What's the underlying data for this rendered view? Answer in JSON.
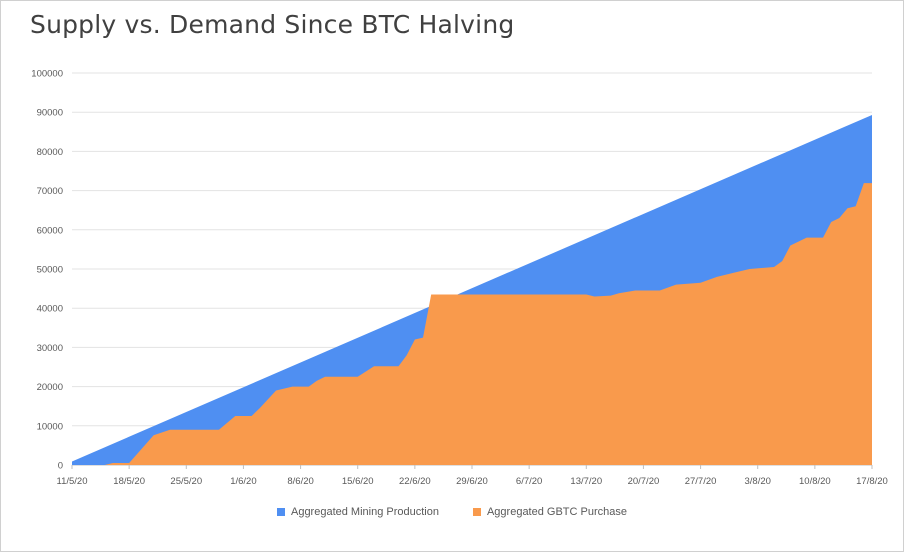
{
  "chart_data": {
    "type": "area",
    "title": "Supply vs. Demand Since BTC Halving",
    "xlabel": "",
    "ylabel": "",
    "ylim": [
      0,
      100000
    ],
    "yticks": [
      0,
      10000,
      20000,
      30000,
      40000,
      50000,
      60000,
      70000,
      80000,
      90000,
      100000
    ],
    "x_tick_labels": [
      "11/5/20",
      "18/5/20",
      "25/5/20",
      "1/6/20",
      "8/6/20",
      "15/6/20",
      "22/6/20",
      "29/6/20",
      "6/7/20",
      "13/7/20",
      "20/7/20",
      "27/7/20",
      "3/8/20",
      "10/8/20",
      "17/8/20"
    ],
    "x_start": "11/5/20",
    "x_end": "17/8/20",
    "grid": true,
    "legend_position": "bottom",
    "series": [
      {
        "name": "Aggregated Mining Production",
        "color": "#4f8ff2",
        "points": [
          [
            "11/5/20",
            900
          ],
          [
            "17/8/20",
            89300
          ]
        ]
      },
      {
        "name": "Aggregated GBTC Purchase",
        "color": "#f99a4c",
        "points": [
          [
            "11/5/20",
            0
          ],
          [
            "15/5/20",
            0
          ],
          [
            "16/5/20",
            500
          ],
          [
            "18/5/20",
            500
          ],
          [
            "21/5/20",
            7600
          ],
          [
            "23/5/20",
            9000
          ],
          [
            "29/5/20",
            9000
          ],
          [
            "31/5/20",
            12500
          ],
          [
            "2/6/20",
            12500
          ],
          [
            "3/6/20",
            14500
          ],
          [
            "5/6/20",
            19000
          ],
          [
            "7/6/20",
            20000
          ],
          [
            "9/6/20",
            20000
          ],
          [
            "10/6/20",
            21500
          ],
          [
            "11/6/20",
            22500
          ],
          [
            "15/6/20",
            22500
          ],
          [
            "17/6/20",
            25200
          ],
          [
            "20/6/20",
            25200
          ],
          [
            "21/6/20",
            28000
          ],
          [
            "22/6/20",
            32000
          ],
          [
            "23/6/20",
            32500
          ],
          [
            "24/6/20",
            43500
          ],
          [
            "13/7/20",
            43500
          ],
          [
            "14/7/20",
            43000
          ],
          [
            "16/7/20",
            43200
          ],
          [
            "17/7/20",
            43800
          ],
          [
            "19/7/20",
            44500
          ],
          [
            "22/7/20",
            44500
          ],
          [
            "24/7/20",
            46000
          ],
          [
            "27/7/20",
            46500
          ],
          [
            "29/7/20",
            48000
          ],
          [
            "31/7/20",
            49000
          ],
          [
            "2/8/20",
            50000
          ],
          [
            "5/8/20",
            50500
          ],
          [
            "6/8/20",
            52000
          ],
          [
            "7/8/20",
            56000
          ],
          [
            "9/8/20",
            58000
          ],
          [
            "11/8/20",
            58000
          ],
          [
            "12/8/20",
            62000
          ],
          [
            "13/8/20",
            63000
          ],
          [
            "14/8/20",
            65500
          ],
          [
            "15/8/20",
            66000
          ],
          [
            "16/8/20",
            71900
          ],
          [
            "17/8/20",
            71900
          ]
        ]
      }
    ]
  }
}
